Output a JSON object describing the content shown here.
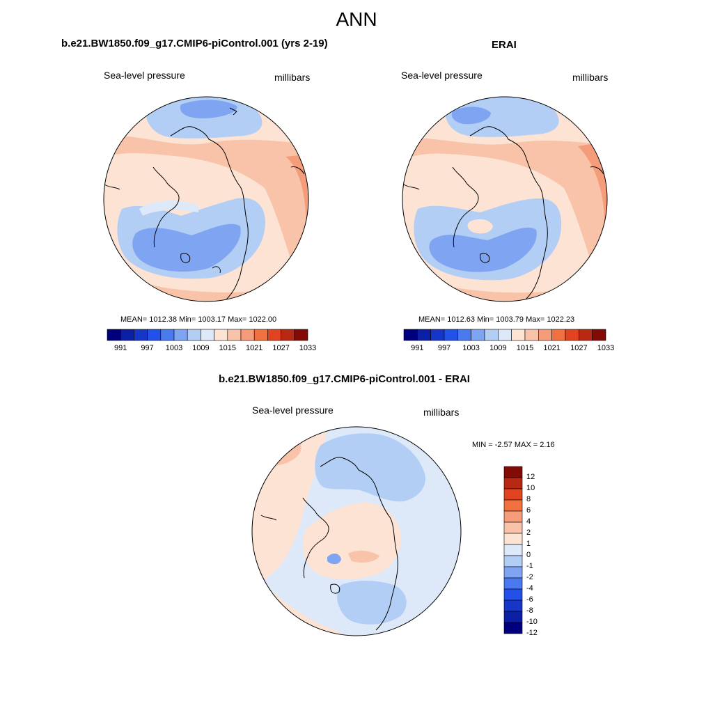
{
  "figure": {
    "title": "ANN"
  },
  "chart_data": [
    {
      "type": "heatmap",
      "projection": "polar-stereographic-north",
      "title": "b.e21.BW1850.f09_g17.CMIP6-piControl.001 (yrs 2-19)",
      "left_label": "Sea-level pressure",
      "right_label": "millibars",
      "stats_text": "MEAN= 1012.38  Min= 1003.17  Max= 1022.00",
      "mean": 1012.38,
      "min": 1003.17,
      "max": 1022.0,
      "colorbar": {
        "orientation": "horizontal",
        "levels": [
          991,
          994,
          997,
          1000,
          1003,
          1006,
          1009,
          1012,
          1015,
          1018,
          1021,
          1024,
          1027,
          1030,
          1033
        ],
        "tick_labels": [
          "991",
          "997",
          "1003",
          "1009",
          "1015",
          "1021",
          "1027",
          "1033"
        ]
      }
    },
    {
      "type": "heatmap",
      "projection": "polar-stereographic-north",
      "title": "ERAI",
      "left_label": "Sea-level pressure",
      "right_label": "millibars",
      "stats_text": "MEAN= 1012.63  Min= 1003.79  Max= 1022.23",
      "mean": 1012.63,
      "min": 1003.79,
      "max": 1022.23,
      "colorbar": {
        "orientation": "horizontal",
        "levels": [
          991,
          994,
          997,
          1000,
          1003,
          1006,
          1009,
          1012,
          1015,
          1018,
          1021,
          1024,
          1027,
          1030,
          1033
        ],
        "tick_labels": [
          "991",
          "997",
          "1003",
          "1009",
          "1015",
          "1021",
          "1027",
          "1033"
        ]
      }
    },
    {
      "type": "heatmap",
      "projection": "polar-stereographic-north",
      "title": "b.e21.BW1850.f09_g17.CMIP6-piControl.001 - ERAI",
      "left_label": "Sea-level pressure",
      "right_label": "millibars",
      "stats_text": "MIN =  -2.57 MAX =   2.16",
      "min": -2.57,
      "max": 2.16,
      "colorbar": {
        "orientation": "vertical",
        "levels": [
          -12,
          -10,
          -8,
          -6,
          -4,
          -2,
          -1,
          0,
          1,
          2,
          4,
          6,
          8,
          10,
          12
        ],
        "tick_labels": [
          "12",
          "10",
          "8",
          "6",
          "4",
          "2",
          "1",
          "0",
          "-1",
          "-2",
          "-4",
          "-6",
          "-8",
          "-10",
          "-12"
        ]
      }
    }
  ],
  "palette": [
    "#00007f",
    "#0a1fa3",
    "#1636c8",
    "#2350e8",
    "#4a78ee",
    "#7fa5f2",
    "#b3cef5",
    "#dde9f8",
    "#fde3d3",
    "#f8c3a8",
    "#f59c7a",
    "#f0703f",
    "#e14320",
    "#b82812",
    "#820a07"
  ],
  "colors": {
    "land_outline": "#000000",
    "blue_mid": "#7fa5f2",
    "blue_light": "#b3cef5",
    "blue_pale": "#dde9f8",
    "peach": "#fde3d3",
    "salmon": "#f8c3a8",
    "orange": "#f59c7a"
  }
}
